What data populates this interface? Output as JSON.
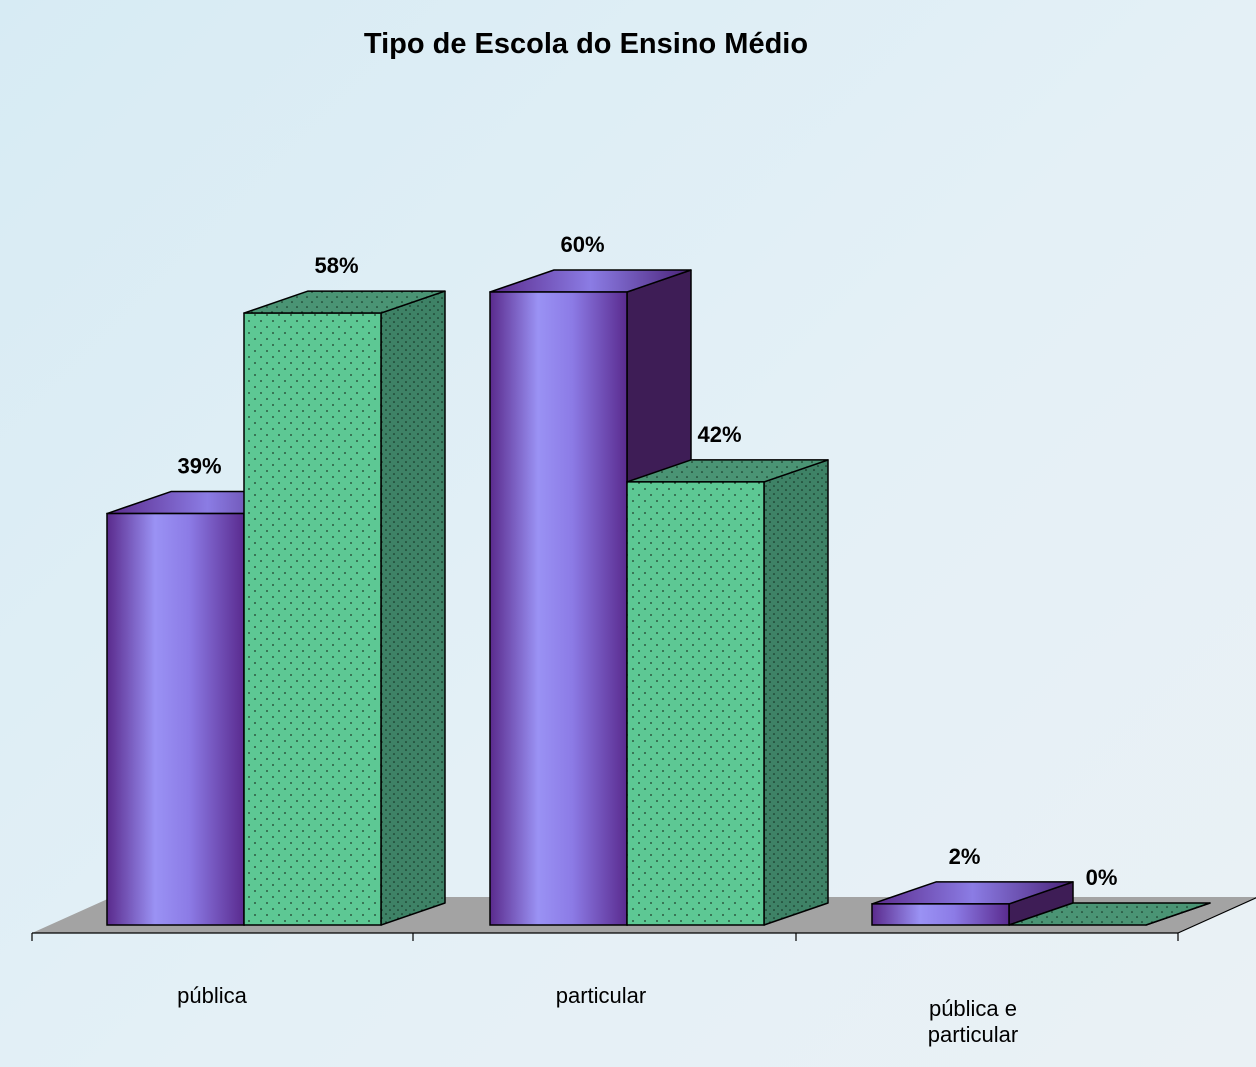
{
  "chart_data": {
    "type": "bar",
    "title": "Tipo de Escola do Ensino Médio",
    "categories": [
      [
        "pública"
      ],
      [
        "particular"
      ],
      [
        "pública e",
        "particular"
      ]
    ],
    "series": [
      {
        "values": [
          39,
          60,
          2
        ],
        "labels": [
          "39%",
          "60%",
          "2%"
        ],
        "color": "#6b3aa0"
      },
      {
        "values": [
          58,
          42,
          0
        ],
        "labels": [
          "58%",
          "42%",
          "0%"
        ],
        "color": "#5bc890"
      }
    ],
    "ylim": [
      0,
      60
    ],
    "grid": false,
    "legend": "none",
    "three_d": true
  }
}
